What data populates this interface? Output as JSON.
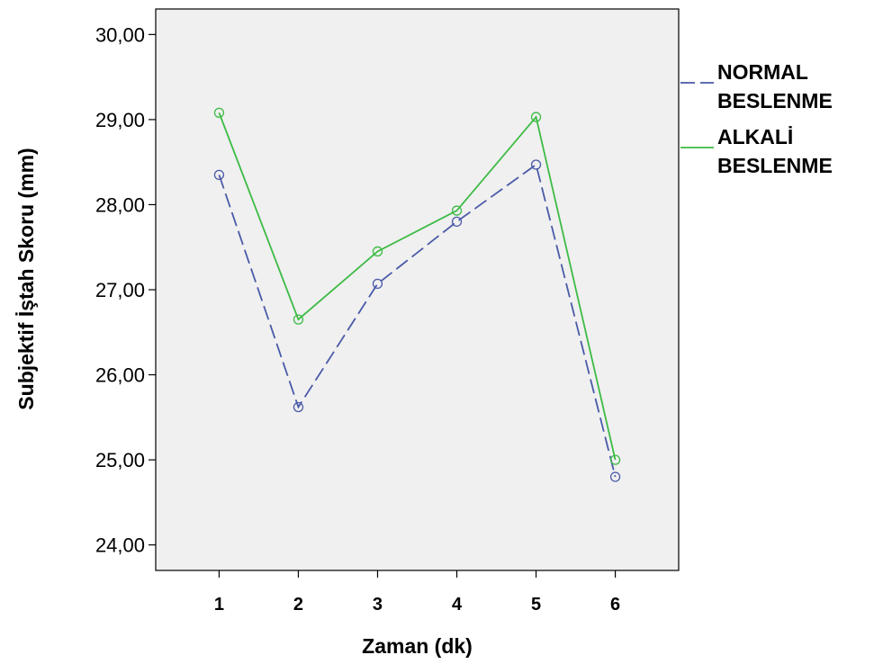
{
  "chart_data": {
    "type": "line",
    "title": "",
    "xlabel": "Zaman (dk)",
    "ylabel": "Subjektif İştah Skoru (mm)",
    "categories": [
      "1",
      "2",
      "3",
      "4",
      "5",
      "6"
    ],
    "x": [
      1,
      2,
      3,
      4,
      5,
      6
    ],
    "xlim": [
      0.2,
      6.8
    ],
    "ylim": [
      23.7,
      30.3
    ],
    "yticks": [
      "24,00",
      "25,00",
      "26,00",
      "27,00",
      "28,00",
      "29,00",
      "30,00"
    ],
    "ytick_values": [
      24,
      25,
      26,
      27,
      28,
      29,
      30
    ],
    "grid": false,
    "legend_position": "right",
    "background": "#f0f0f0",
    "series": [
      {
        "name": "NORMAL BESLENME",
        "name_lines": [
          "NORMAL",
          "BESLENME"
        ],
        "color": "#4a5aa8",
        "style": "dashed",
        "values": [
          28.35,
          25.62,
          27.07,
          27.8,
          28.47,
          24.8
        ]
      },
      {
        "name": "ALKALİ BESLENME",
        "name_lines": [
          "ALKALİ",
          "BESLENME"
        ],
        "color": "#3dbb45",
        "style": "solid",
        "values": [
          29.08,
          26.65,
          27.45,
          27.93,
          29.03,
          25.0
        ]
      }
    ]
  }
}
